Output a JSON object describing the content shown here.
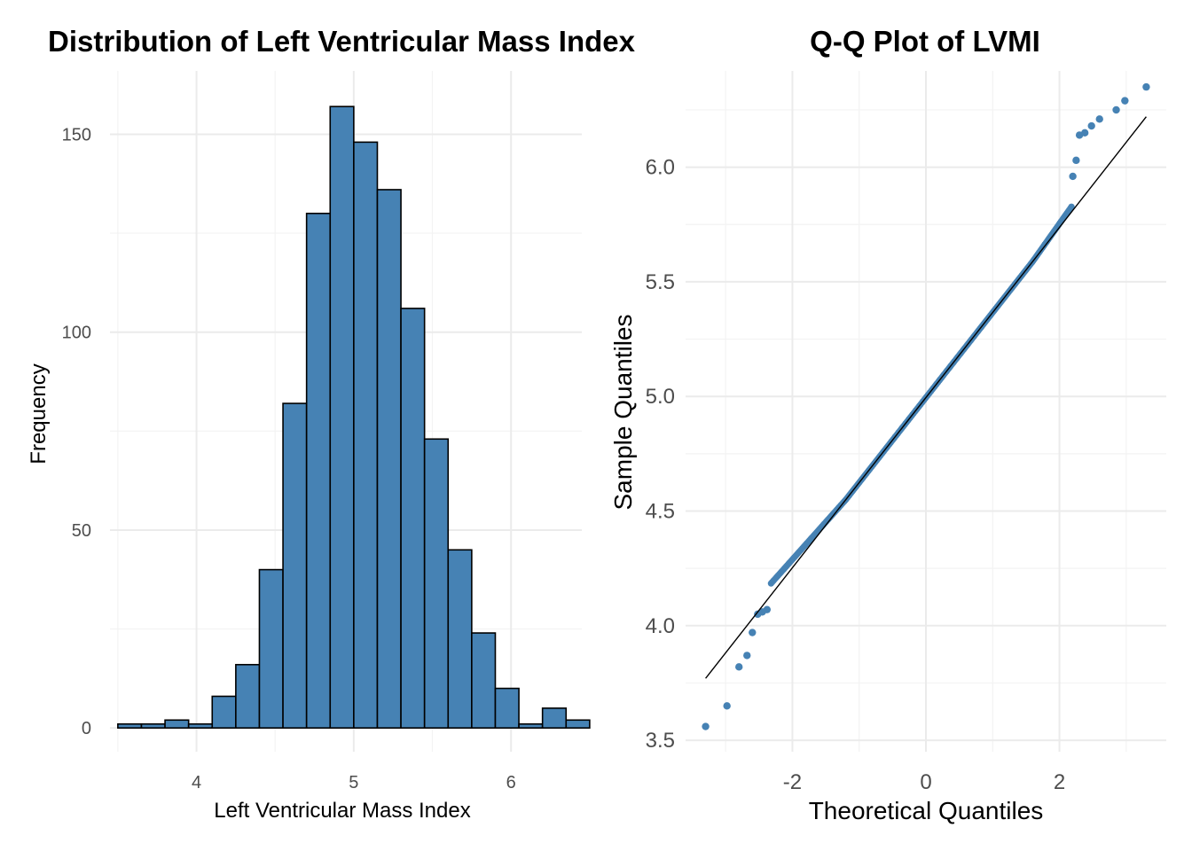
{
  "chart_data": [
    {
      "type": "bar",
      "title": "Distribution of Left Ventricular Mass Index",
      "xlabel": "Left Ventricular Mass Index",
      "ylabel": "Frequency",
      "xlim": [
        3.45,
        6.45
      ],
      "ylim": [
        -6,
        166
      ],
      "xticks": [
        "4",
        "5",
        "6"
      ],
      "yticks": [
        "0",
        "50",
        "100",
        "150"
      ],
      "grid": true,
      "bar_color": "#4682B4",
      "bar_border": "#000000",
      "bins": [
        {
          "x0": 3.5,
          "x1": 3.65,
          "count": 1
        },
        {
          "x0": 3.65,
          "x1": 3.8,
          "count": 1
        },
        {
          "x0": 3.8,
          "x1": 3.95,
          "count": 2
        },
        {
          "x0": 3.95,
          "x1": 4.1,
          "count": 1
        },
        {
          "x0": 4.1,
          "x1": 4.25,
          "count": 8
        },
        {
          "x0": 4.25,
          "x1": 4.4,
          "count": 16
        },
        {
          "x0": 4.4,
          "x1": 4.55,
          "count": 40
        },
        {
          "x0": 4.55,
          "x1": 4.7,
          "count": 82
        },
        {
          "x0": 4.7,
          "x1": 4.85,
          "count": 130
        },
        {
          "x0": 4.85,
          "x1": 5.0,
          "count": 157
        },
        {
          "x0": 5.0,
          "x1": 5.15,
          "count": 148
        },
        {
          "x0": 5.15,
          "x1": 5.3,
          "count": 136
        },
        {
          "x0": 5.3,
          "x1": 5.45,
          "count": 106
        },
        {
          "x0": 5.45,
          "x1": 5.6,
          "count": 73
        },
        {
          "x0": 5.6,
          "x1": 5.75,
          "count": 45
        },
        {
          "x0": 5.75,
          "x1": 5.9,
          "count": 24
        },
        {
          "x0": 5.9,
          "x1": 6.05,
          "count": 10
        },
        {
          "x0": 6.05,
          "x1": 6.2,
          "count": 1
        },
        {
          "x0": 6.2,
          "x1": 6.35,
          "count": 5
        },
        {
          "x0": 6.35,
          "x1": 6.5,
          "count": 2
        }
      ]
    },
    {
      "type": "scatter",
      "title": "Q-Q Plot of LVMI",
      "xlabel": "Theoretical Quantiles",
      "ylabel": "Sample Quantiles",
      "xlim": [
        -3.6,
        3.6
      ],
      "ylim": [
        3.45,
        6.42
      ],
      "xticks": [
        "-2",
        "0",
        "2"
      ],
      "yticks": [
        "3.5",
        "4.0",
        "4.5",
        "5.0",
        "5.5",
        "6.0"
      ],
      "grid": true,
      "point_color": "#4682B4",
      "reference_line": {
        "x": [
          -3.3,
          3.3
        ],
        "y": [
          3.77,
          6.22
        ],
        "color": "#000000"
      },
      "tail_points": [
        {
          "x": -3.3,
          "y": 3.56
        },
        {
          "x": -2.98,
          "y": 3.65
        },
        {
          "x": -2.8,
          "y": 3.82
        },
        {
          "x": -2.68,
          "y": 3.87
        },
        {
          "x": -2.6,
          "y": 3.97
        },
        {
          "x": -2.52,
          "y": 4.05
        },
        {
          "x": -2.45,
          "y": 4.06
        },
        {
          "x": -2.38,
          "y": 4.07
        },
        {
          "x": 2.2,
          "y": 5.96
        },
        {
          "x": 2.25,
          "y": 6.03
        },
        {
          "x": 2.3,
          "y": 6.14
        },
        {
          "x": 2.38,
          "y": 6.15
        },
        {
          "x": 2.48,
          "y": 6.18
        },
        {
          "x": 2.6,
          "y": 6.21
        },
        {
          "x": 2.85,
          "y": 6.25
        },
        {
          "x": 2.98,
          "y": 6.29
        },
        {
          "x": 3.3,
          "y": 6.35
        }
      ]
    }
  ]
}
